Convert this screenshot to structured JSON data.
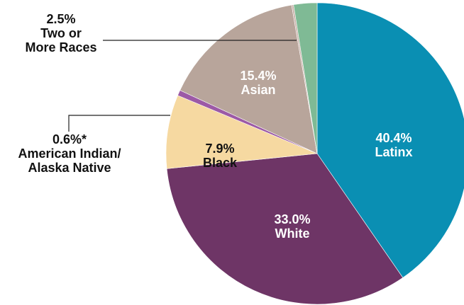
{
  "chart_data": {
    "type": "pie",
    "categories": [
      "Latinx",
      "White",
      "Black",
      "American Indian/\nAlaska Native",
      "Asian",
      null,
      "Two or\nMore Races"
    ],
    "values": [
      40.4,
      33.0,
      7.9,
      0.6,
      15.4,
      0.2,
      2.5
    ],
    "value_labels": [
      "40.4%",
      "33.0%",
      "7.9%",
      "0.6%*",
      "15.4%",
      null,
      "2.5%"
    ],
    "colors": [
      "#0a8fb3",
      "#6e3566",
      "#f6d9a1",
      "#9c5aa6",
      "#b8a59b",
      "#c9b2aa",
      "#7fba95"
    ]
  }
}
